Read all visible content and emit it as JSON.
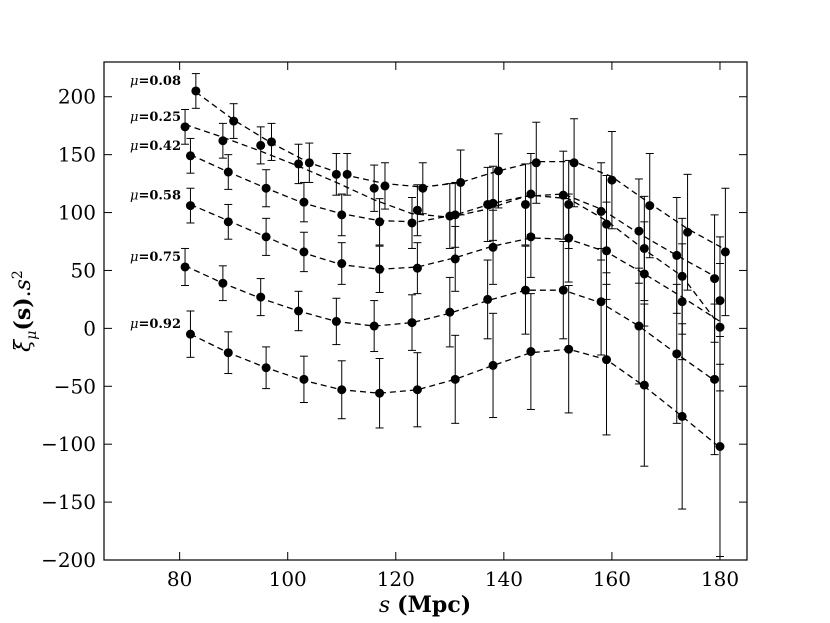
{
  "chart_data": {
    "type": "scatter",
    "xlabel": "s (Mpc)",
    "ylabel": "ξμ(s).s²",
    "xlim": [
      66,
      185
    ],
    "ylim": [
      -200,
      230
    ],
    "xticks": [
      80,
      100,
      120,
      140,
      160,
      180
    ],
    "yticks": [
      -200,
      -150,
      -100,
      -50,
      0,
      50,
      100,
      150,
      200
    ],
    "xtick_labels": [
      "80",
      "100",
      "120",
      "140",
      "160",
      "180"
    ],
    "ytick_labels": [
      "−200",
      "−150",
      "−100",
      "−50",
      "0",
      "50",
      "100",
      "150",
      "200"
    ],
    "grid": false,
    "marker_color": "#000000",
    "series": [
      {
        "name": "μ=0.08",
        "label_sym": "μ",
        "label_val": "=0.08",
        "points": [
          [
            83,
            205,
            15
          ],
          [
            90,
            179,
            15
          ],
          [
            97,
            161,
            16
          ],
          [
            104,
            143,
            17
          ],
          [
            111,
            133,
            18
          ],
          [
            118,
            123,
            20
          ],
          [
            125,
            121,
            22
          ],
          [
            132,
            126,
            28
          ],
          [
            139,
            136,
            32
          ],
          [
            146,
            143,
            35
          ],
          [
            153,
            143,
            38
          ],
          [
            160,
            128,
            42
          ],
          [
            167,
            106,
            45
          ],
          [
            174,
            83,
            50
          ],
          [
            181,
            66,
            55
          ]
        ],
        "fit": [
          [
            83,
            204
          ],
          [
            90,
            180
          ],
          [
            97,
            160
          ],
          [
            104,
            143
          ],
          [
            111,
            132
          ],
          [
            118,
            125
          ],
          [
            125,
            122
          ],
          [
            132,
            126
          ],
          [
            139,
            136
          ],
          [
            146,
            144
          ],
          [
            153,
            144
          ],
          [
            160,
            131
          ],
          [
            167,
            108
          ],
          [
            174,
            86
          ],
          [
            181,
            68
          ]
        ]
      },
      {
        "name": "μ=0.25",
        "label_sym": "μ",
        "label_val": "=0.25",
        "points": [
          [
            81,
            174,
            15
          ],
          [
            88,
            162,
            15
          ],
          [
            95,
            158,
            16
          ],
          [
            102,
            142,
            17
          ],
          [
            109,
            133,
            18
          ],
          [
            116,
            121,
            20
          ],
          [
            123,
            91,
            22
          ],
          [
            130,
            97,
            28
          ],
          [
            137,
            107,
            32
          ],
          [
            144,
            107,
            35
          ],
          [
            151,
            115,
            38
          ],
          [
            158,
            101,
            42
          ],
          [
            165,
            84,
            45
          ],
          [
            172,
            63,
            50
          ],
          [
            179,
            43,
            55
          ]
        ],
        "fit": [
          [
            81,
            176
          ],
          [
            88,
            165
          ],
          [
            95,
            153
          ],
          [
            102,
            140
          ],
          [
            109,
            126
          ],
          [
            116,
            111
          ],
          [
            123,
            99
          ],
          [
            130,
            96
          ],
          [
            137,
            103
          ],
          [
            144,
            114
          ],
          [
            151,
            116
          ],
          [
            158,
            103
          ],
          [
            165,
            82
          ],
          [
            172,
            63
          ],
          [
            179,
            45
          ]
        ]
      },
      {
        "name": "μ=0.42",
        "label_sym": "μ",
        "label_val": "=0.42",
        "points": [
          [
            82,
            149,
            15
          ],
          [
            89,
            135,
            15
          ],
          [
            96,
            121,
            16
          ],
          [
            103,
            109,
            17
          ],
          [
            110,
            98,
            18
          ],
          [
            117,
            92,
            20
          ],
          [
            124,
            102,
            22
          ],
          [
            131,
            98,
            28
          ],
          [
            138,
            108,
            32
          ],
          [
            145,
            116,
            35
          ],
          [
            152,
            107,
            38
          ],
          [
            159,
            90,
            42
          ],
          [
            166,
            69,
            45
          ],
          [
            173,
            45,
            50
          ],
          [
            180,
            1,
            55
          ]
        ],
        "fit": [
          [
            82,
            150
          ],
          [
            89,
            135
          ],
          [
            96,
            121
          ],
          [
            103,
            108
          ],
          [
            110,
            99
          ],
          [
            117,
            93
          ],
          [
            124,
            92
          ],
          [
            131,
            98
          ],
          [
            138,
            108
          ],
          [
            145,
            115
          ],
          [
            152,
            112
          ],
          [
            159,
            93
          ],
          [
            166,
            68
          ],
          [
            173,
            45
          ],
          [
            180,
            2
          ]
        ]
      },
      {
        "name": "μ=0.58",
        "label_sym": "μ",
        "label_val": "=0.58",
        "points": [
          [
            82,
            106,
            15
          ],
          [
            89,
            92,
            15
          ],
          [
            96,
            79,
            16
          ],
          [
            103,
            66,
            17
          ],
          [
            110,
            56,
            18
          ],
          [
            117,
            51,
            20
          ],
          [
            124,
            52,
            22
          ],
          [
            131,
            60,
            28
          ],
          [
            138,
            70,
            32
          ],
          [
            145,
            79,
            35
          ],
          [
            152,
            78,
            38
          ],
          [
            159,
            67,
            42
          ],
          [
            166,
            47,
            45
          ],
          [
            173,
            23,
            50
          ],
          [
            180,
            24,
            55
          ]
        ],
        "fit": [
          [
            82,
            107
          ],
          [
            89,
            93
          ],
          [
            96,
            79
          ],
          [
            103,
            65
          ],
          [
            110,
            55
          ],
          [
            117,
            51
          ],
          [
            124,
            53
          ],
          [
            131,
            61
          ],
          [
            138,
            71
          ],
          [
            145,
            78
          ],
          [
            152,
            77
          ],
          [
            159,
            66
          ],
          [
            166,
            47
          ],
          [
            173,
            27
          ],
          [
            180,
            6
          ]
        ]
      },
      {
        "name": "μ=0.75",
        "label_sym": "μ",
        "label_val": "=0.75",
        "points": [
          [
            81,
            53,
            16
          ],
          [
            88,
            39,
            15
          ],
          [
            95,
            27,
            16
          ],
          [
            102,
            15,
            17
          ],
          [
            109,
            6,
            20
          ],
          [
            116,
            2,
            22
          ],
          [
            123,
            5,
            24
          ],
          [
            130,
            14,
            30
          ],
          [
            137,
            25,
            34
          ],
          [
            144,
            33,
            38
          ],
          [
            151,
            33,
            42
          ],
          [
            158,
            23,
            46
          ],
          [
            165,
            2,
            50
          ],
          [
            172,
            -22,
            60
          ],
          [
            179,
            -44,
            65
          ]
        ],
        "fit": [
          [
            81,
            54
          ],
          [
            88,
            39
          ],
          [
            95,
            26
          ],
          [
            102,
            15
          ],
          [
            109,
            6
          ],
          [
            116,
            2
          ],
          [
            123,
            5
          ],
          [
            130,
            13
          ],
          [
            137,
            24
          ],
          [
            144,
            33
          ],
          [
            151,
            33
          ],
          [
            158,
            22
          ],
          [
            165,
            2
          ],
          [
            172,
            -22
          ],
          [
            179,
            -45
          ]
        ]
      },
      {
        "name": "μ=0.92",
        "label_sym": "μ",
        "label_val": "=0.92",
        "points": [
          [
            82,
            -5,
            20
          ],
          [
            89,
            -21,
            18
          ],
          [
            96,
            -34,
            18
          ],
          [
            103,
            -44,
            20
          ],
          [
            110,
            -53,
            25
          ],
          [
            117,
            -56,
            30
          ],
          [
            124,
            -53,
            32
          ],
          [
            131,
            -44,
            38
          ],
          [
            138,
            -32,
            45
          ],
          [
            145,
            -20,
            50
          ],
          [
            152,
            -18,
            55
          ],
          [
            159,
            -27,
            65
          ],
          [
            166,
            -49,
            70
          ],
          [
            173,
            -76,
            80
          ],
          [
            180,
            -102,
            95
          ]
        ],
        "fit": [
          [
            82,
            -5
          ],
          [
            89,
            -21
          ],
          [
            96,
            -34
          ],
          [
            103,
            -45
          ],
          [
            110,
            -53
          ],
          [
            117,
            -56
          ],
          [
            124,
            -53
          ],
          [
            131,
            -44
          ],
          [
            138,
            -32
          ],
          [
            145,
            -21
          ],
          [
            152,
            -18
          ],
          [
            159,
            -27
          ],
          [
            166,
            -50
          ],
          [
            173,
            -76
          ],
          [
            180,
            -103
          ]
        ]
      }
    ]
  }
}
